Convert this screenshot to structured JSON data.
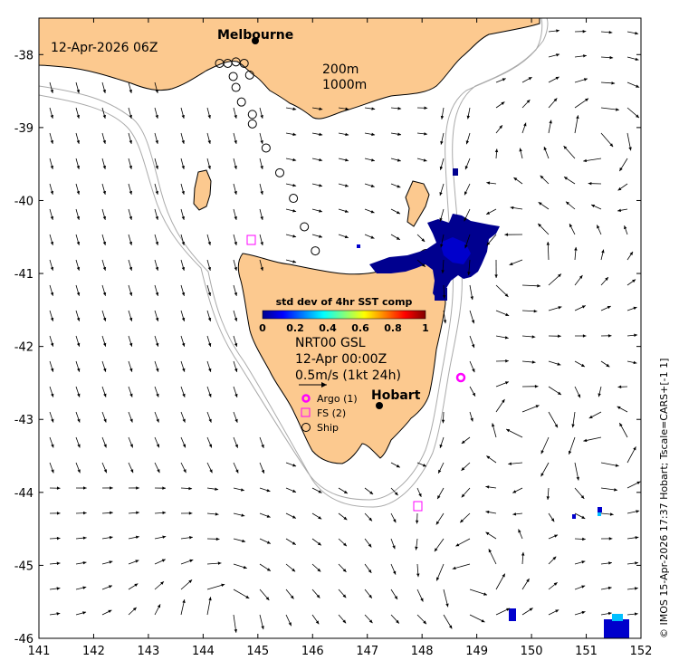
{
  "map": {
    "timestamp": "12-Apr-2026 06Z",
    "x_ticks": [
      "141",
      "142",
      "143",
      "144",
      "145",
      "146",
      "147",
      "148",
      "149",
      "150",
      "151",
      "152"
    ],
    "y_ticks": [
      "-38",
      "-39",
      "-40",
      "-41",
      "-42",
      "-43",
      "-44",
      "-45",
      "-46"
    ],
    "x_range": [
      141,
      152
    ],
    "y_range": [
      -46,
      -37.5
    ],
    "cities": [
      {
        "name": "Melbourne",
        "lon": 144.96,
        "lat": -37.81
      },
      {
        "name": "Hobart",
        "lon": 147.33,
        "lat": -42.88
      }
    ],
    "depth_contours": [
      "200m",
      "1000m"
    ],
    "side_credit": "© IMOS 15-Apr-2026 17:37 Hobart; Tscale=CARS+[-1 1]",
    "land_color": "#fcc98f",
    "contour_color": "#aaaaaa"
  },
  "colorbar": {
    "title": "std dev of 4hr SST comp",
    "ticks": [
      "0",
      "0.2",
      "0.4",
      "0.6",
      "0.8",
      "1"
    ],
    "range": [
      0,
      1
    ],
    "colormap": "jet"
  },
  "info": {
    "product": "NRT00 GSL",
    "time": "12-Apr 00:00Z",
    "scale": "0.5m/s (1kt 24h)"
  },
  "legend": [
    {
      "label": "Argo (1)",
      "symbol": "circle",
      "color": "#ff00ff"
    },
    {
      "label": "FS (2)",
      "symbol": "square",
      "color": "#ff00ff"
    },
    {
      "label": "Ship",
      "symbol": "circle-open",
      "color": "#000000"
    }
  ],
  "observations": {
    "argo": [
      {
        "lon": 148.75,
        "lat": -42.42
      }
    ],
    "fs": [
      {
        "lon": 144.9,
        "lat": -40.55
      },
      {
        "lon": 147.95,
        "lat": -44.19
      }
    ],
    "ship": [
      {
        "lon": 144.3,
        "lat": -38.12
      },
      {
        "lon": 144.45,
        "lat": -38.12
      },
      {
        "lon": 144.6,
        "lat": -38.1
      },
      {
        "lon": 144.75,
        "lat": -38.12
      },
      {
        "lon": 144.85,
        "lat": -38.28
      },
      {
        "lon": 144.55,
        "lat": -38.3
      },
      {
        "lon": 144.6,
        "lat": -38.45
      },
      {
        "lon": 144.7,
        "lat": -38.65
      },
      {
        "lon": 144.9,
        "lat": -38.82
      },
      {
        "lon": 144.9,
        "lat": -38.95
      },
      {
        "lon": 145.15,
        "lat": -39.28
      },
      {
        "lon": 145.4,
        "lat": -39.62
      },
      {
        "lon": 145.65,
        "lat": -39.97
      },
      {
        "lon": 145.85,
        "lat": -40.36
      },
      {
        "lon": 146.05,
        "lat": -40.69
      }
    ]
  }
}
